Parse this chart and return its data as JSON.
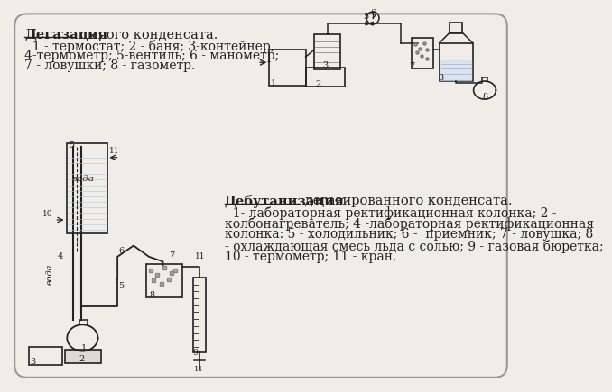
{
  "bg_color": "#f0ede8",
  "border_color": "#999999",
  "line_color": "#222222",
  "title1_underline": "Дегазация",
  "title1_rest": " сырого конденсата.",
  "text1_line2": "  1 - термостат; 2 - баня; 3-контейнер,",
  "text1_line3": "4-термометр; 5-вентиль; 6 - манометр;",
  "text1_line4": "7 - ловушки; 8 - газометр.",
  "title2_underline": "Дебутанизация",
  "title2_rest": " дегазированного конденсата.",
  "text2_line2": "  1- лабораторная ректификационная колонка; 2 -",
  "text2_line3": "колбонагреватель; 4 -лабораторная ректификационная",
  "text2_line4": "колонка: 5 - холодильник; 6 -  приемник; 7 - ловушка; 8",
  "text2_line5": "- охлаждающая смесь льда с солью; 9 - газовая бюретка;",
  "text2_line6": "10 - термометр; 11 - кран.",
  "font_size_title": 10.5,
  "font_size_body": 10.0
}
